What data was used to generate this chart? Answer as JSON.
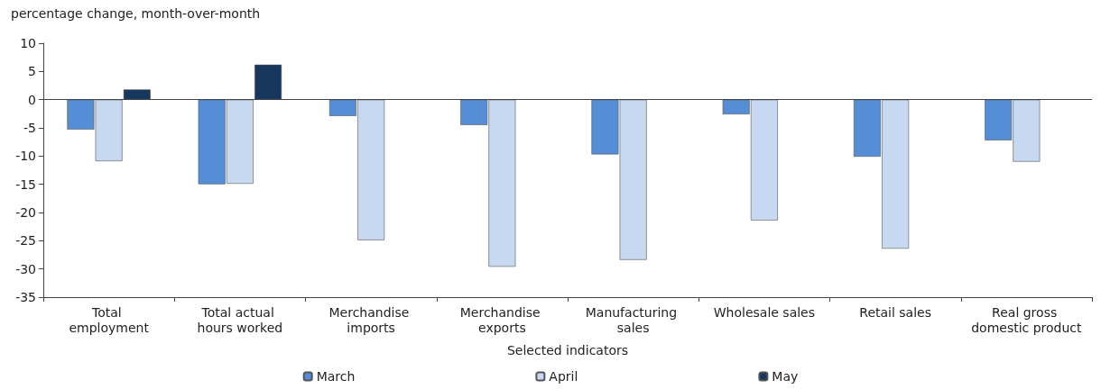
{
  "chart_data": {
    "type": "bar",
    "ylabel": "percentage change, month-over-month",
    "xlabel": "Selected indicators",
    "categories": [
      "Total employment",
      "Total actual hours worked",
      "Merchandise imports",
      "Merchandise exports",
      "Manufacturing sales",
      "Wholesale sales",
      "Retail sales",
      "Real gross domestic product"
    ],
    "series": [
      {
        "name": "March",
        "color": "#558ed5",
        "values": [
          -5.3,
          -15.0,
          -2.9,
          -4.5,
          -9.7,
          -2.6,
          -10.1,
          -7.2
        ]
      },
      {
        "name": "April",
        "color": "#c6d9f1",
        "values": [
          -10.9,
          -14.9,
          -24.9,
          -29.6,
          -28.4,
          -21.4,
          -26.4,
          -11.0
        ]
      },
      {
        "name": "May",
        "color": "#17375e",
        "values": [
          1.8,
          6.2,
          null,
          null,
          null,
          null,
          null,
          null
        ]
      }
    ],
    "ylim": [
      -35,
      10
    ],
    "yticks": [
      -35,
      -30,
      -25,
      -20,
      -15,
      -10,
      -5,
      0,
      5,
      10
    ],
    "grid": false,
    "legend": "bottom",
    "ref_lines": [
      {
        "axis": "y",
        "value": 0,
        "color": "#444444"
      }
    ]
  }
}
